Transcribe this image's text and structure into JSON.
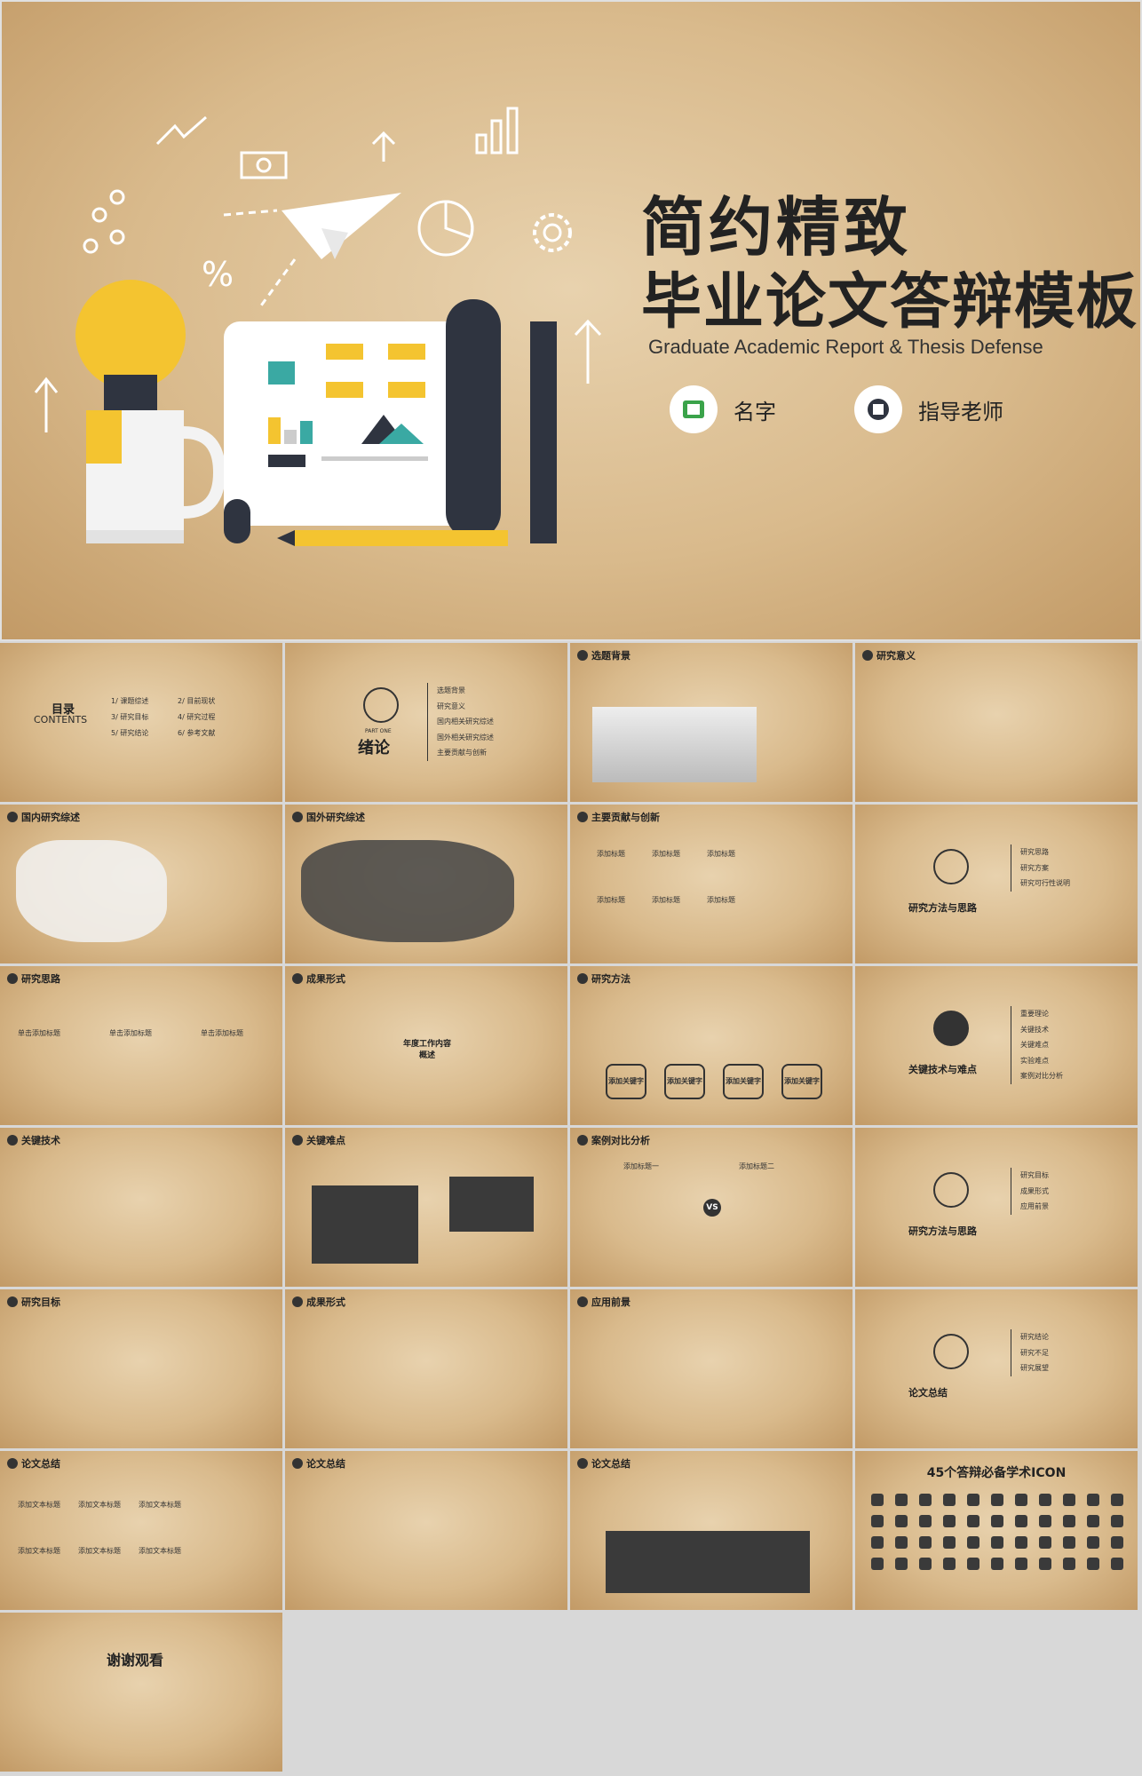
{
  "hero": {
    "title_line1": "简约精致",
    "title_line2": "毕业论文答辩模板",
    "subtitle": "Graduate Academic Report & Thesis Defense",
    "name_label": "名字",
    "advisor_label": "指导老师"
  },
  "slides": [
    {
      "header": "",
      "main": "目录",
      "sub": "CONTENTS",
      "items": [
        "1/ 课题综述",
        "2/ 目前现状",
        "3/ 研究目标",
        "4/ 研究过程",
        "5/ 研究结论",
        "6/ 参考文献"
      ]
    },
    {
      "header": "",
      "main": "绪论",
      "sub": "PART ONE",
      "items": [
        "选题背景",
        "研究意义",
        "国内相关研究综述",
        "国外相关研究综述",
        "主要贡献与创新"
      ]
    },
    {
      "header": "选题背景",
      "main": "",
      "items": []
    },
    {
      "header": "研究意义",
      "main": "",
      "items": []
    },
    {
      "header": "国内研究综述",
      "main": "",
      "items": []
    },
    {
      "header": "国外研究综述",
      "main": "",
      "items": []
    },
    {
      "header": "主要贡献与创新",
      "main": "",
      "items": [
        "添加标题",
        "添加标题",
        "添加标题",
        "添加标题",
        "添加标题",
        "添加标题"
      ]
    },
    {
      "header": "",
      "main": "研究方法与思路",
      "items": [
        "研究思路",
        "研究方案",
        "研究可行性说明"
      ]
    },
    {
      "header": "研究思路",
      "main": "",
      "items": [
        "单击添加标题",
        "单击添加标题",
        "单击添加标题"
      ]
    },
    {
      "header": "成果形式",
      "main": "年度工作内容概述",
      "items": []
    },
    {
      "header": "研究方法",
      "main": "",
      "items": [
        "添加关键字",
        "添加关键字",
        "添加关键字",
        "添加关键字"
      ]
    },
    {
      "header": "",
      "main": "关键技术与难点",
      "items": [
        "重要理论",
        "关键技术",
        "关键难点",
        "实验难点",
        "案例对比分析"
      ]
    },
    {
      "header": "关键技术",
      "main": "",
      "items": []
    },
    {
      "header": "关键难点",
      "main": "",
      "items": []
    },
    {
      "header": "案例对比分析",
      "main": "VS",
      "items": [
        "添加标题一",
        "添加标题二"
      ]
    },
    {
      "header": "",
      "main": "研究方法与思路",
      "items": [
        "研究目标",
        "成果形式",
        "应用前景"
      ]
    },
    {
      "header": "研究目标",
      "main": "",
      "items": []
    },
    {
      "header": "成果形式",
      "main": "",
      "items": []
    },
    {
      "header": "应用前景",
      "main": "",
      "items": []
    },
    {
      "header": "",
      "main": "论文总结",
      "items": [
        "研究结论",
        "研究不足",
        "研究展望"
      ]
    },
    {
      "header": "论文总结",
      "main": "",
      "items": [
        "添加文本标题",
        "添加文本标题",
        "添加文本标题",
        "添加文本标题",
        "添加文本标题",
        "添加文本标题"
      ]
    },
    {
      "header": "论文总结",
      "main": "",
      "items": []
    },
    {
      "header": "论文总结",
      "main": "",
      "items": []
    },
    {
      "header": "",
      "main": "45个答辩必备学术ICON",
      "items": []
    },
    {
      "header": "",
      "main": "谢谢观看",
      "items": []
    }
  ],
  "colors": {
    "accent": "#f4c430",
    "dark": "#2f3440",
    "paper": "#d9ba8c"
  }
}
